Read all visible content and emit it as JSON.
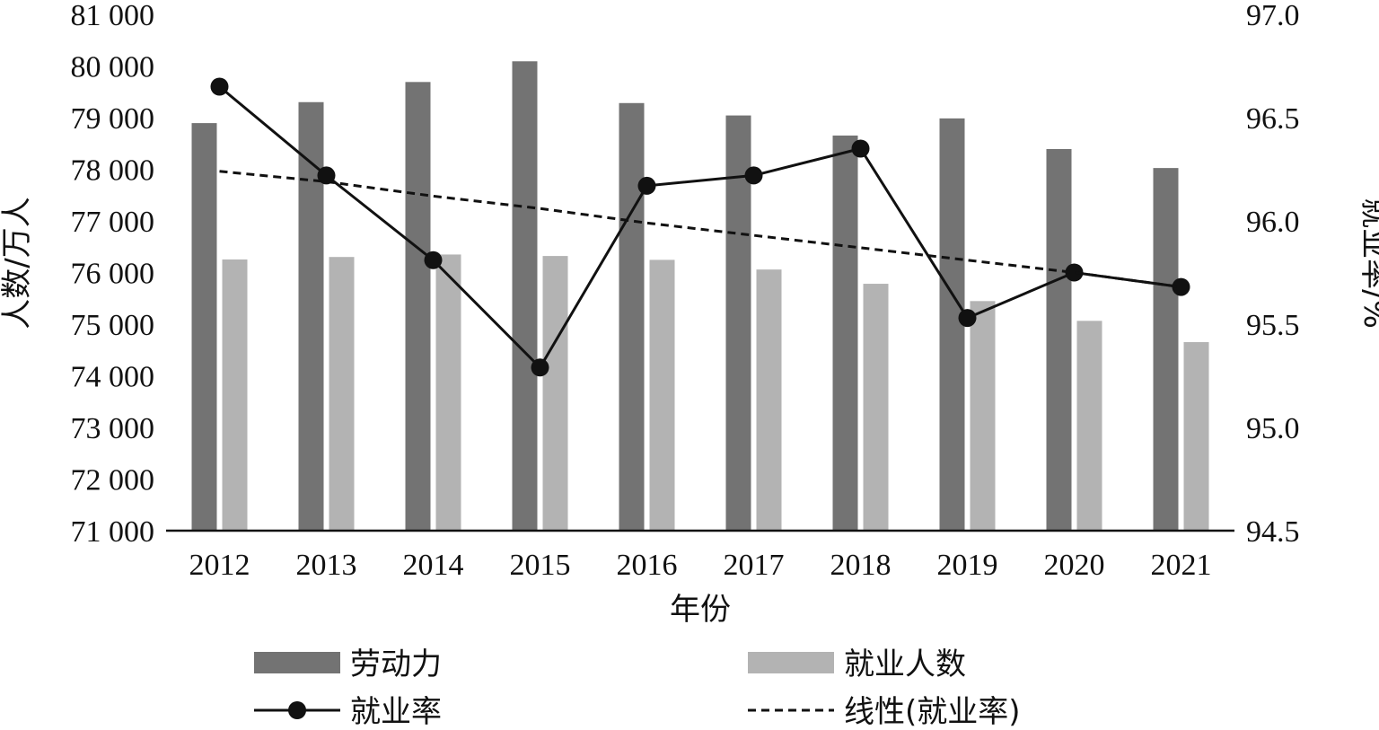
{
  "chart_data": {
    "type": "bar",
    "categories": [
      "2012",
      "2013",
      "2014",
      "2015",
      "2016",
      "2017",
      "2018",
      "2019",
      "2020",
      "2021"
    ],
    "xlabel": "年份",
    "ylabel": "人数/万人",
    "y2label": "就业率/%",
    "ylim": [
      71000,
      81000
    ],
    "y2lim": [
      94.5,
      97.0
    ],
    "y_ticks": [
      "71 000",
      "72 000",
      "73 000",
      "74 000",
      "75 000",
      "76 000",
      "77 000",
      "78 000",
      "79 000",
      "80 000",
      "81 000"
    ],
    "y2_ticks": [
      "94.5",
      "95.0",
      "95.5",
      "96.0",
      "96.5",
      "97.0"
    ],
    "series": [
      {
        "name": "劳动力",
        "type": "bar",
        "color": "#737373",
        "values": [
          78894,
          79300,
          79690,
          80091,
          79282,
          79042,
          78653,
          78985,
          78392,
          78024
        ]
      },
      {
        "name": "就业人数",
        "type": "bar",
        "color": "#b3b3b3",
        "values": [
          76253,
          76301,
          76349,
          76320,
          76245,
          76058,
          75782,
          75447,
          75064,
          74652
        ]
      },
      {
        "name": "就业率",
        "type": "line",
        "color": "#111111",
        "values": [
          96.65,
          96.22,
          95.81,
          95.29,
          96.17,
          96.22,
          96.35,
          95.53,
          95.75,
          95.68
        ]
      },
      {
        "name": "线性(就业率)",
        "type": "trend",
        "color": "#111111",
        "values": [
          96.24,
          96.19,
          96.12,
          96.06,
          95.99,
          95.93,
          95.87,
          95.81,
          95.75,
          95.68
        ]
      }
    ],
    "legend": "bottom",
    "grid": false
  }
}
